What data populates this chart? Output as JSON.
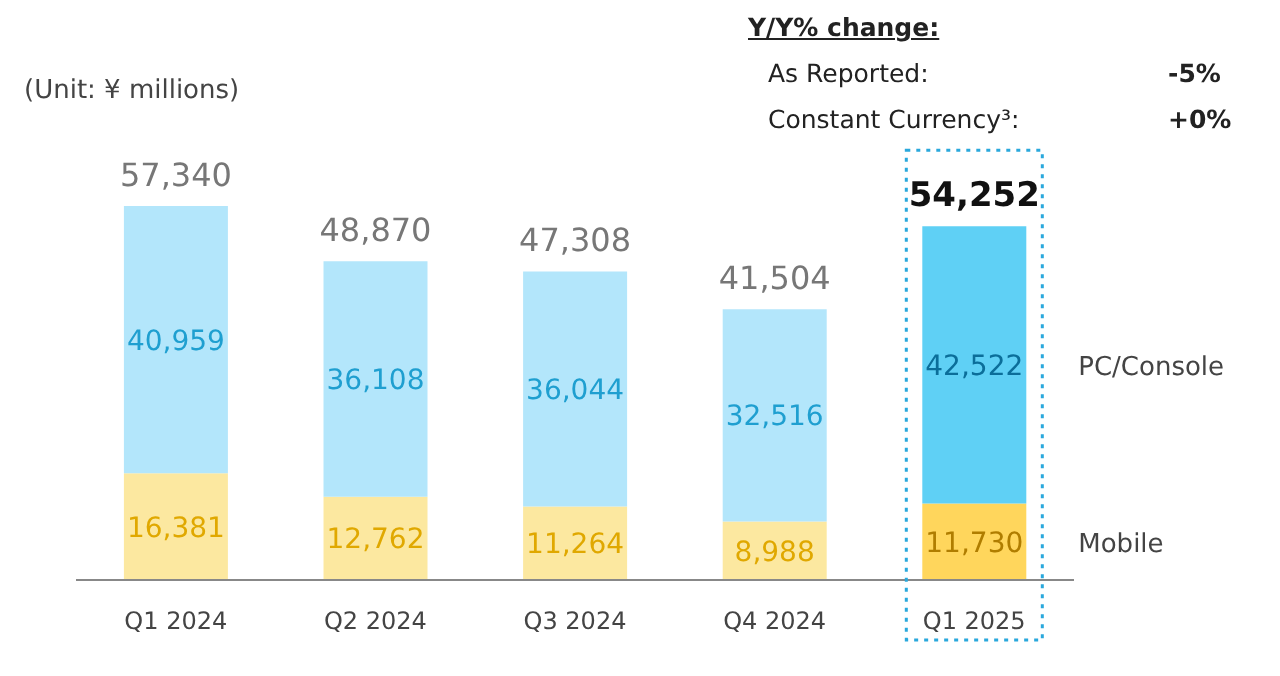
{
  "chart_data": {
    "type": "bar",
    "stacked": true,
    "categories": [
      "Q1 2024",
      "Q2 2024",
      "Q3 2024",
      "Q4 2024",
      "Q1 2025"
    ],
    "series": [
      {
        "name": "Mobile",
        "colors": [
          "#fce8a0",
          "#fce8a0",
          "#fce8a0",
          "#fce8a0",
          "#ffd65c"
        ],
        "values": [
          16381,
          12762,
          11264,
          8988,
          11730
        ],
        "value_labels": [
          "16,381",
          "12,762",
          "11,264",
          "8,988",
          "11,730"
        ]
      },
      {
        "name": "PC/Console",
        "colors": [
          "#b3e6fb",
          "#b3e6fb",
          "#b3e6fb",
          "#b3e6fb",
          "#5fd0f5"
        ],
        "values": [
          40959,
          36108,
          36044,
          32516,
          42522
        ],
        "value_labels": [
          "40,959",
          "36,108",
          "36,044",
          "32,516",
          "42,522"
        ]
      }
    ],
    "totals": [
      "57,340",
      "48,870",
      "47,308",
      "41,504",
      "54,252"
    ],
    "annotations": [
      "(Unit: ¥ millions)",
      "Y/Y% change:",
      "As Reported:",
      "-5%",
      "Constant Currency³:",
      "+0%"
    ]
  }
}
